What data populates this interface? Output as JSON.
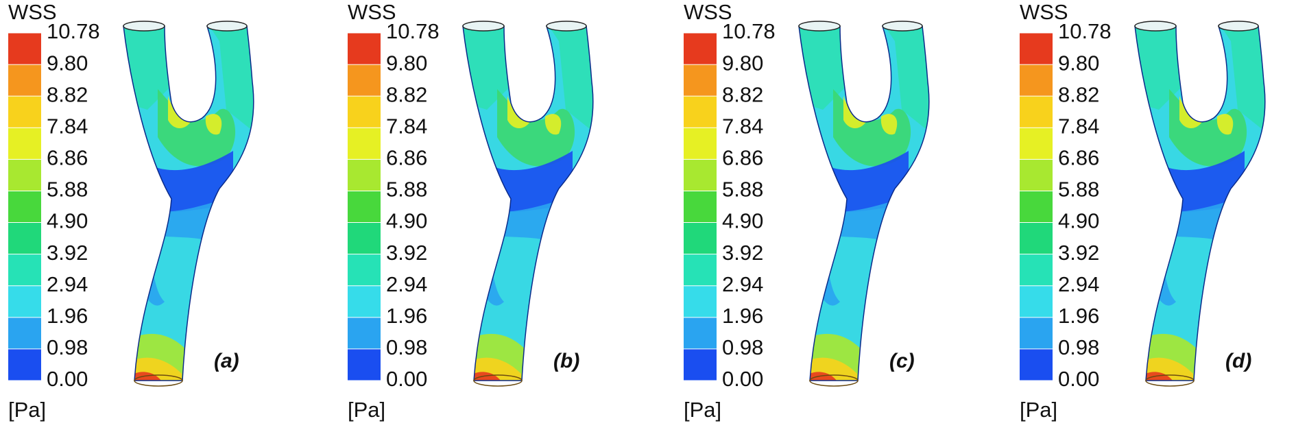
{
  "legend": {
    "title": "WSS",
    "unit": "[Pa]",
    "ticks": [
      {
        "value": 10.78,
        "label": "10.78"
      },
      {
        "value": 9.8,
        "label": "9.80"
      },
      {
        "value": 8.82,
        "label": "8.82"
      },
      {
        "value": 7.84,
        "label": "7.84"
      },
      {
        "value": 6.86,
        "label": "6.86"
      },
      {
        "value": 5.88,
        "label": "5.88"
      },
      {
        "value": 4.9,
        "label": "4.90"
      },
      {
        "value": 3.92,
        "label": "3.92"
      },
      {
        "value": 2.94,
        "label": "2.94"
      },
      {
        "value": 1.96,
        "label": "1.96"
      },
      {
        "value": 0.98,
        "label": "0.98"
      },
      {
        "value": 0,
        "label": "0.00"
      }
    ],
    "colors": [
      "#e63a1e",
      "#f5961e",
      "#f8d21c",
      "#e6f024",
      "#a8e830",
      "#48d83c",
      "#20d87a",
      "#26e2b6",
      "#36dcea",
      "#2aa4f0",
      "#1a4ef0"
    ]
  },
  "panels": [
    {
      "label": "(a)"
    },
    {
      "label": "(b)"
    },
    {
      "label": "(c)"
    },
    {
      "label": "(d)"
    }
  ]
}
